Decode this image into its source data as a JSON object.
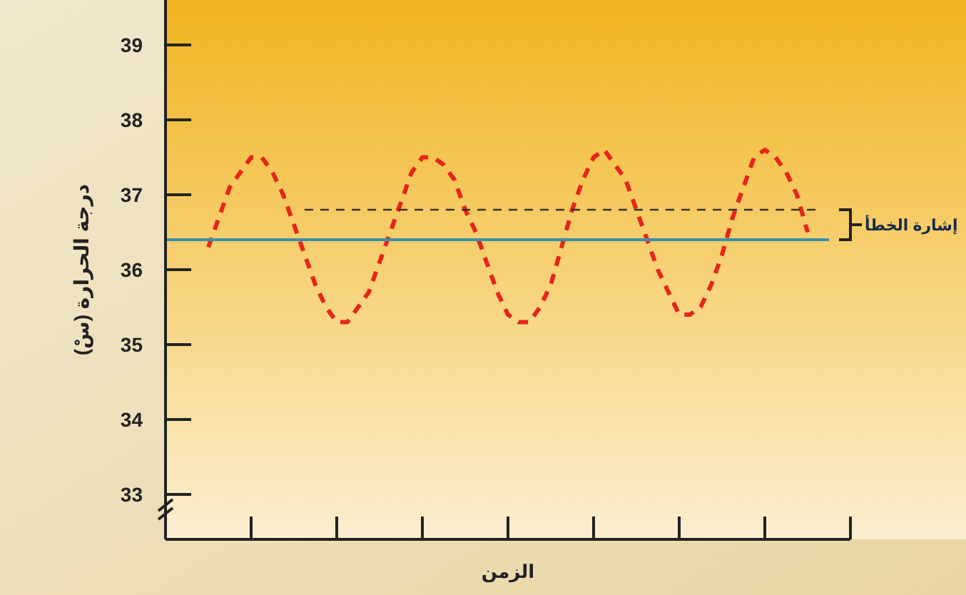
{
  "chart_data": {
    "type": "line",
    "xlabel": "الزمن",
    "ylabel": "درجة الحرارة (سْ)",
    "categories": [
      null,
      null,
      null,
      null,
      null,
      null,
      null,
      null,
      null,
      null,
      null,
      null,
      null,
      null,
      null,
      null,
      null,
      null,
      null,
      null,
      null,
      null,
      null,
      null,
      null,
      null,
      null,
      null,
      null,
      null,
      null,
      null,
      null,
      null,
      null,
      null,
      null,
      null,
      null,
      null,
      null,
      null,
      null,
      null,
      null,
      null,
      null,
      null,
      null,
      null,
      null,
      null,
      null,
      null,
      null,
      null,
      null,
      null,
      null,
      null,
      null,
      null,
      null,
      null,
      null
    ],
    "ylim": [
      32.4,
      39.6
    ],
    "yticks": [
      33,
      34,
      35,
      36,
      37,
      38,
      39
    ],
    "tick_labels": "y",
    "grid": false,
    "marker": "none",
    "series": [
      {
        "color": "#e8241c",
        "line_style": "dashed",
        "values": [
          null,
          null,
          null,
          null,
          36.3,
          36.7,
          37.1,
          37.3,
          37.5,
          37.5,
          37.3,
          37.0,
          36.6,
          36.2,
          35.8,
          35.5,
          35.3,
          35.3,
          35.5,
          35.7,
          36.1,
          36.5,
          36.9,
          37.3,
          37.5,
          37.5,
          37.4,
          37.2,
          36.8,
          36.5,
          36.1,
          35.7,
          35.4,
          35.3,
          35.3,
          35.5,
          35.8,
          36.3,
          36.8,
          37.2,
          37.5,
          37.6,
          37.4,
          37.2,
          36.8,
          36.4,
          36.0,
          35.7,
          35.4,
          35.4,
          35.5,
          35.8,
          36.2,
          36.7,
          37.1,
          37.5,
          37.6,
          37.5,
          37.3,
          37.0,
          36.5,
          null,
          null,
          null,
          null
        ]
      },
      {
        "color": "#3a8fa8",
        "line_style": "solid",
        "values": [
          36.4,
          36.4,
          36.4,
          36.4,
          36.4,
          36.4,
          36.4,
          36.4,
          36.4,
          36.4,
          36.4,
          36.4,
          36.4,
          36.4,
          36.4,
          36.4,
          36.4,
          36.4,
          36.4,
          36.4,
          36.4,
          36.4,
          36.4,
          36.4,
          36.4,
          36.4,
          36.4,
          36.4,
          36.4,
          36.4,
          36.4,
          36.4,
          36.4,
          36.4,
          36.4,
          36.4,
          36.4,
          36.4,
          36.4,
          36.4,
          36.4,
          36.4,
          36.4,
          36.4,
          36.4,
          36.4,
          36.4,
          36.4,
          36.4,
          36.4,
          36.4,
          36.4,
          36.4,
          36.4,
          36.4,
          36.4,
          36.4,
          36.4,
          36.4,
          36.4,
          36.4,
          36.4,
          36.4,
          null,
          null
        ]
      },
      {
        "color": "#3a3320",
        "line_style": "dashed",
        "values": [
          null,
          null,
          null,
          null,
          null,
          null,
          null,
          null,
          null,
          null,
          null,
          null,
          null,
          36.8,
          36.8,
          36.8,
          36.8,
          36.8,
          36.8,
          36.8,
          36.8,
          36.8,
          36.8,
          36.8,
          36.8,
          36.8,
          36.8,
          36.8,
          36.8,
          36.8,
          36.8,
          36.8,
          36.8,
          36.8,
          36.8,
          36.8,
          36.8,
          36.8,
          36.8,
          36.8,
          36.8,
          36.8,
          36.8,
          36.8,
          36.8,
          36.8,
          36.8,
          36.8,
          36.8,
          36.8,
          36.8,
          36.8,
          36.8,
          36.8,
          36.8,
          36.8,
          36.8,
          36.8,
          36.8,
          36.8,
          36.8,
          36.8,
          null,
          null,
          null
        ]
      }
    ],
    "annotations": [
      "إشارة الخطأ"
    ]
  }
}
